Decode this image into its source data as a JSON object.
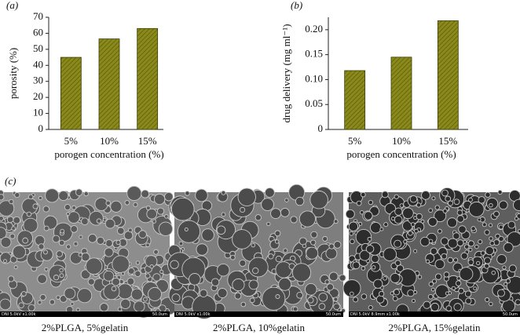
{
  "chart_data": [
    {
      "type": "bar",
      "panel_label": "(a)",
      "ylabel": "porosity (%)",
      "xlabel": "porogen concentration (%)",
      "categories": [
        "5%",
        "10%",
        "15%"
      ],
      "values": [
        45,
        56.5,
        63
      ],
      "color": "#7a7a12",
      "ylim": [
        0,
        70
      ],
      "yticks": [
        0,
        10,
        20,
        30,
        40,
        50,
        60,
        70
      ]
    },
    {
      "type": "bar",
      "panel_label": "(b)",
      "ylabel": "drug delivery (mg ml⁻¹)",
      "xlabel": "porogen concentration (%)",
      "categories": [
        "5%",
        "10%",
        "15%"
      ],
      "values": [
        0.118,
        0.145,
        0.218
      ],
      "color": "#7a7a12",
      "ylim": [
        0,
        0.225
      ],
      "yticks": [
        0,
        0.05,
        {
          "value": 0.1,
          "label": "0.10"
        },
        0.15,
        {
          "value": 0.2,
          "label": "0.20"
        }
      ]
    }
  ],
  "images": {
    "panel_label": "(c)",
    "items": [
      {
        "caption": "2%PLGA, 5%gelatin",
        "info": "DNI 5.0kV x1.00k",
        "scale": "50.0um"
      },
      {
        "caption": "2%PLGA, 10%gelatin",
        "info": "DNI 5.0kV x1.00k",
        "scale": "50.0um"
      },
      {
        "caption": "2%PLGA, 15%gelatin",
        "info": "DNI 5.0kV 8.9mm x1.00k",
        "scale": "50.0um"
      }
    ]
  }
}
